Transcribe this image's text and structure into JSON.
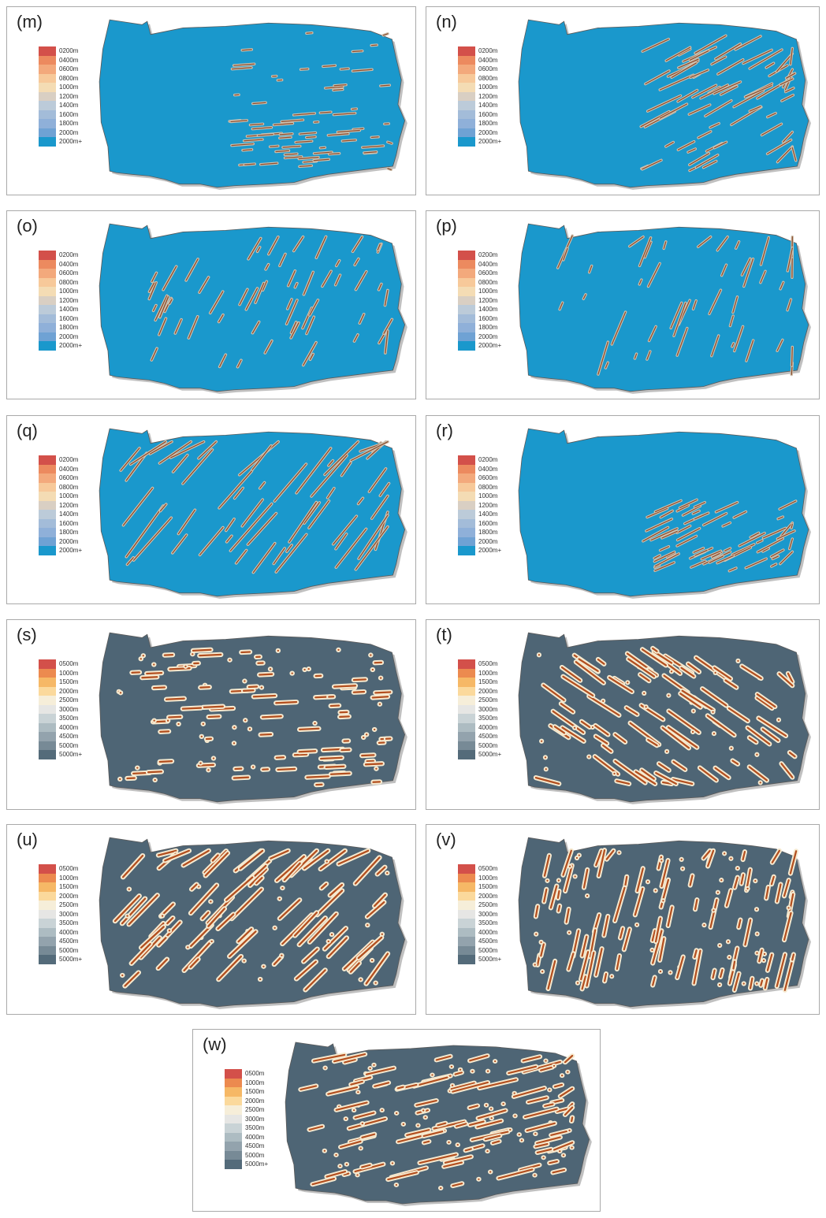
{
  "palettes": {
    "short": {
      "colors": [
        "#d3504a",
        "#ec8a5f",
        "#f3a97c",
        "#f7c99a",
        "#f4dcb4",
        "#d9cfc3",
        "#bccbd9",
        "#a3bcd9",
        "#8fb0d9",
        "#6fa2d4",
        "#1a98cc"
      ],
      "labels": [
        "0200m",
        "0400m",
        "0600m",
        "0800m",
        "1000m",
        "1200m",
        "1400m",
        "1600m",
        "1800m",
        "2000m",
        "2000m+"
      ],
      "fill": "#1a98cc",
      "stroke": "#8a4a2a"
    },
    "long": {
      "colors": [
        "#d3504a",
        "#ec8a4f",
        "#f6b866",
        "#fbd99c",
        "#f6eed9",
        "#e6e6e4",
        "#c9d3d6",
        "#adbcc2",
        "#93a3ad",
        "#778a96",
        "#546b7a"
      ],
      "labels": [
        "0500m",
        "1000m",
        "1500m",
        "2000m",
        "2500m",
        "3000m",
        "3500m",
        "4000m",
        "4500m",
        "5000m",
        "5000m+"
      ],
      "fill": "#4e6575",
      "stroke": "#b34f1f"
    }
  },
  "panels": [
    {
      "label": "(m)",
      "palette": "short",
      "pattern": "m"
    },
    {
      "label": "(n)",
      "palette": "short",
      "pattern": "n"
    },
    {
      "label": "(o)",
      "palette": "short",
      "pattern": "o"
    },
    {
      "label": "(p)",
      "palette": "short",
      "pattern": "p"
    },
    {
      "label": "(q)",
      "palette": "short",
      "pattern": "q"
    },
    {
      "label": "(r)",
      "palette": "short",
      "pattern": "r"
    },
    {
      "label": "(s)",
      "palette": "long",
      "pattern": "s"
    },
    {
      "label": "(t)",
      "palette": "long",
      "pattern": "t"
    },
    {
      "label": "(u)",
      "palette": "long",
      "pattern": "u"
    },
    {
      "label": "(v)",
      "palette": "long",
      "pattern": "v"
    },
    {
      "label": "(w)",
      "palette": "long",
      "pattern": "w"
    }
  ]
}
